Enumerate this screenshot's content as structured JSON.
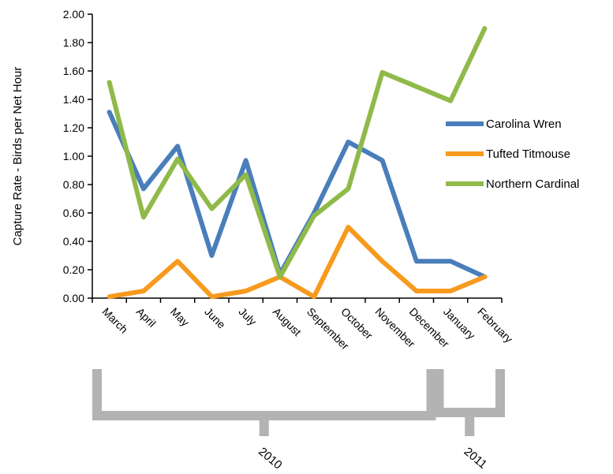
{
  "chart_data": {
    "type": "line",
    "categories": [
      "March",
      "April",
      "May",
      "June",
      "July",
      "August",
      "September",
      "October",
      "November",
      "December",
      "January",
      "February"
    ],
    "ylabel": "Capture Rate - Birds per Net Hour",
    "ylim": [
      0,
      2
    ],
    "yticks": [
      "0.00",
      "0.20",
      "0.40",
      "0.60",
      "0.80",
      "1.00",
      "1.20",
      "1.40",
      "1.60",
      "1.80",
      "2.00"
    ],
    "grid": false,
    "legend_position": "right",
    "series": [
      {
        "name": "Carolina Wren",
        "color": "#4a7ebb",
        "values": [
          1.31,
          0.77,
          1.07,
          0.3,
          0.97,
          0.17,
          0.6,
          1.1,
          0.97,
          0.26,
          0.26,
          0.15
        ]
      },
      {
        "name": "Tufted Titmouse",
        "color": "#f79a1e",
        "values": [
          0.01,
          0.05,
          0.26,
          0.01,
          0.05,
          0.15,
          0.01,
          0.5,
          0.26,
          0.05,
          0.05,
          0.15
        ]
      },
      {
        "name": "Northern Cardinal",
        "color": "#8fba4a",
        "values": [
          1.52,
          0.57,
          0.98,
          0.63,
          0.87,
          0.15,
          0.58,
          0.77,
          1.59,
          1.49,
          1.39,
          1.9
        ]
      }
    ],
    "year_groups": [
      {
        "label": "2010",
        "from": "March",
        "to": "December"
      },
      {
        "label": "2011",
        "from": "January",
        "to": "February"
      }
    ]
  }
}
